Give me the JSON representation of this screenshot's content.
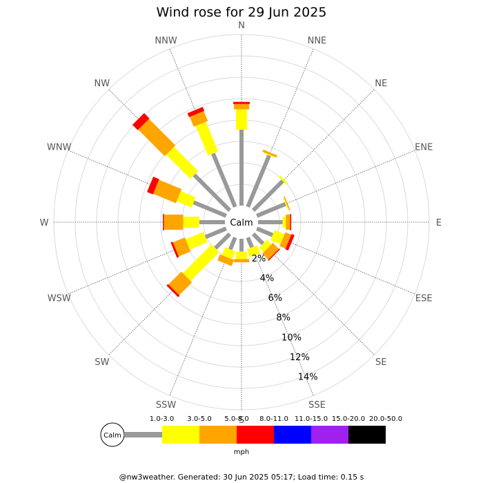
{
  "title": "Wind rose for 29 Jun 2025",
  "calm_label": "Calm",
  "unit": "mph",
  "footer": "@nw3weather. Generated: 30 Jun 2025 05:17; Load time: 0.15 s",
  "colors": {
    "calm": "#999999",
    "bins": [
      "#999999",
      "#ffff00",
      "#ffa500",
      "#ff0000",
      "#0000ff",
      "#a020f0",
      "#000000"
    ]
  },
  "chart_data": {
    "type": "wind-rose",
    "title": "Wind rose for 29 Jun 2025",
    "directions": [
      "N",
      "NNE",
      "NE",
      "ENE",
      "E",
      "ESE",
      "SE",
      "SSE",
      "S",
      "SSW",
      "SW",
      "WSW",
      "W",
      "WNW",
      "NW",
      "NNW"
    ],
    "speed_bins": [
      "1.0-3.0",
      "3.0-5.0",
      "5.0-8.0",
      "8.0-11.0",
      "11.0-15.0",
      "15.0-20.0",
      "20.0-50.0"
    ],
    "radial_ticks": [
      "2%",
      "4%",
      "6%",
      "8%",
      "10%",
      "12%",
      "14%"
    ],
    "radial_max": 16,
    "unit": "mph",
    "series": [
      {
        "name": "1.0-3.0",
        "values": [
          7.1,
          5.2,
          3.9,
          2.9,
          2.3,
          1.6,
          1.3,
          1.0,
          1.2,
          1.2,
          1.9,
          2.1,
          2.4,
          3.3,
          4.7,
          5.4
        ]
      },
      {
        "name": "3.0-5.0",
        "values": [
          1.9,
          0.1,
          0.2,
          0.1,
          0.3,
          1.0,
          0.6,
          0.8,
          0.7,
          0.8,
          3.8,
          1.8,
          1.5,
          1.5,
          3.2,
          3.0
        ]
      },
      {
        "name": "5.0-8.0",
        "values": [
          0.5,
          0.2,
          0.0,
          0.1,
          0.4,
          0.6,
          0.8,
          0.0,
          0.3,
          0.6,
          1.7,
          1.2,
          1.8,
          2.3,
          3.5,
          1.0
        ]
      },
      {
        "name": "8.0-11.0",
        "values": [
          0.2,
          0.0,
          0.0,
          0.0,
          0.1,
          0.3,
          0.1,
          0.0,
          0.0,
          0.0,
          0.2,
          0.2,
          0.1,
          0.6,
          0.7,
          0.4
        ]
      },
      {
        "name": "11.0-15.0",
        "values": [
          0,
          0,
          0,
          0,
          0,
          0,
          0,
          0,
          0,
          0,
          0,
          0,
          0,
          0,
          0,
          0
        ]
      },
      {
        "name": "15.0-20.0",
        "values": [
          0,
          0,
          0,
          0,
          0,
          0,
          0,
          0,
          0,
          0,
          0,
          0,
          0,
          0,
          0,
          0
        ]
      },
      {
        "name": "20.0-50.0",
        "values": [
          0,
          0,
          0,
          0,
          0,
          0,
          0,
          0,
          0,
          0,
          0,
          0,
          0,
          0,
          0,
          0
        ]
      }
    ],
    "grid": true,
    "legend": "bottom"
  }
}
